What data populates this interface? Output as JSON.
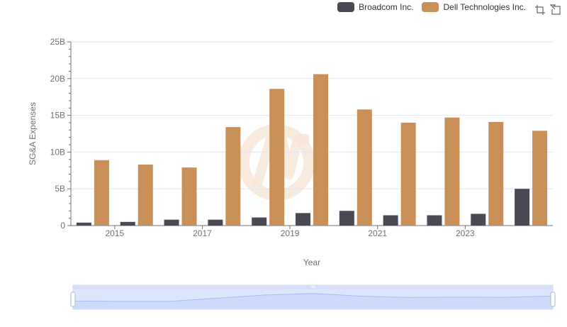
{
  "legend": [
    {
      "name": "Broadcom Inc.",
      "color": "#4a4a55"
    },
    {
      "name": "Dell Technologies Inc.",
      "color": "#c98f59"
    }
  ],
  "toolbox": {
    "icons": [
      "zoom-select-icon",
      "zoom-reset-icon"
    ]
  },
  "chart_data": {
    "type": "bar",
    "title": "",
    "xlabel": "Year",
    "ylabel": "SG&A Expenses",
    "categories": [
      "2014",
      "2015",
      "2016",
      "2017",
      "2018",
      "2019",
      "2020",
      "2021",
      "2022",
      "2023",
      "2024"
    ],
    "x_tick_labels": [
      "2015",
      "2017",
      "2019",
      "2021",
      "2023"
    ],
    "y_tick_labels": [
      "0",
      "5B",
      "10B",
      "15B",
      "20B",
      "25B"
    ],
    "ylim": [
      0,
      25
    ],
    "y_unit": "billions",
    "grid": true,
    "legend_position": "top-right",
    "series": [
      {
        "name": "Broadcom Inc.",
        "color": "#4a4a55",
        "values": [
          0.4,
          0.5,
          0.8,
          0.8,
          1.1,
          1.7,
          2.0,
          1.4,
          1.4,
          1.6,
          5.0
        ]
      },
      {
        "name": "Dell Technologies Inc.",
        "color": "#c98f59",
        "values": [
          8.9,
          8.3,
          7.9,
          13.4,
          18.6,
          20.6,
          15.8,
          14.0,
          14.7,
          14.1,
          12.9
        ]
      }
    ]
  },
  "datazoom": {
    "range_percent": [
      0,
      100
    ]
  },
  "watermark": {
    "color": "#f6e6d6"
  }
}
